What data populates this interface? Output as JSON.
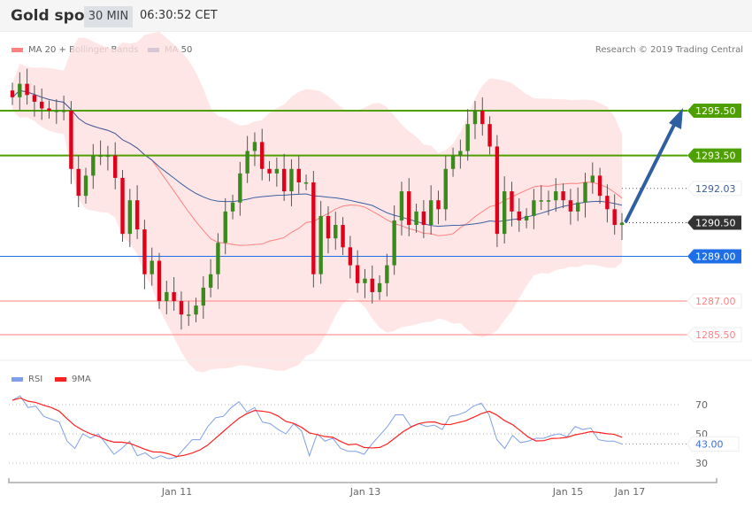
{
  "header": {
    "title": "Gold spot",
    "timeframe": "30 MIN",
    "time": "06:30:52 CET"
  },
  "legend": {
    "ma20": "MA 20 + Bollinger Bands",
    "ma50": "MA 50",
    "credit": "Research © 2019 Trading Central"
  },
  "rsi_legend": {
    "rsi": "RSI",
    "ma9": "9MA"
  },
  "colors": {
    "up": "#3a8a1e",
    "down": "#e0001a",
    "ma20": "#ff8080",
    "band": "#ffe0e0",
    "ma50": "#3a5fa0",
    "resistance": "#4ea000",
    "pivot": "#1e6ee8",
    "support": "#ff8080",
    "last": "#333333",
    "arrow": "#2f5fa0",
    "rsi": "#7f9fe8",
    "ma9": "#ff2020"
  },
  "chart_data": [
    {
      "type": "candlestick",
      "title": "Gold spot",
      "ylim": [
        1284.5,
        1297.5
      ],
      "closes": [
        1296.1,
        1296.7,
        1296.2,
        1295.9,
        1295.6,
        1295.5,
        1295.5,
        1295.5,
        1292.9,
        1291.7,
        1292.6,
        1293.5,
        1293.5,
        1293.5,
        1292.5,
        1290.0,
        1291.5,
        1290.2,
        1288.2,
        1288.8,
        1287.0,
        1287.4,
        1287.0,
        1286.4,
        1286.4,
        1286.8,
        1287.6,
        1288.2,
        1289.6,
        1291.0,
        1291.4,
        1292.7,
        1293.7,
        1294.1,
        1292.9,
        1292.7,
        1292.9,
        1291.9,
        1292.9,
        1292.3,
        1292.3,
        1288.2,
        1290.8,
        1289.8,
        1290.4,
        1289.4,
        1288.6,
        1287.8,
        1288.0,
        1287.4,
        1287.8,
        1288.6,
        1290.6,
        1291.9,
        1290.4,
        1291.0,
        1290.4,
        1291.5,
        1291.1,
        1292.9,
        1293.5,
        1293.7,
        1294.9,
        1295.5,
        1294.9,
        1293.9,
        1290.0,
        1291.9,
        1291.0,
        1290.6,
        1290.8,
        1291.5,
        1291.5,
        1291.5,
        1291.9,
        1291.5,
        1291.0,
        1291.4,
        1292.3,
        1292.6,
        1291.7,
        1291.1,
        1290.4,
        1290.5
      ],
      "levels": [
        {
          "value": "1295.50",
          "kind": "resistance"
        },
        {
          "value": "1293.50",
          "kind": "resistance"
        },
        {
          "value": "1292.03",
          "kind": "ma50"
        },
        {
          "value": "1290.50",
          "kind": "last"
        },
        {
          "value": "1289.00",
          "kind": "pivot"
        },
        {
          "value": "1287.00",
          "kind": "support"
        },
        {
          "value": "1285.50",
          "kind": "support"
        }
      ],
      "series": [
        {
          "name": "MA 20 + Bollinger Bands"
        },
        {
          "name": "MA 50"
        }
      ]
    },
    {
      "type": "line",
      "ylim": [
        20,
        80
      ],
      "yticks": [
        "70",
        "50",
        "30"
      ],
      "last_value": "43.00",
      "xticks": [
        "Jan 11",
        "Jan 13",
        "Jan 15",
        "Jan 17"
      ],
      "series": [
        {
          "name": "RSI",
          "values": [
            73,
            76,
            68,
            69,
            62,
            60,
            58,
            45,
            40,
            50,
            47,
            50,
            43,
            36,
            40,
            45,
            35,
            37,
            33,
            35,
            33,
            34,
            40,
            46,
            46,
            55,
            61,
            62,
            68,
            72,
            65,
            68,
            58,
            57,
            53,
            50,
            57,
            52,
            35,
            50,
            45,
            47,
            40,
            38,
            38,
            36,
            43,
            49,
            55,
            63,
            63,
            55,
            57,
            55,
            56,
            53,
            62,
            63,
            65,
            69,
            71,
            63,
            46,
            40,
            49,
            44,
            45,
            47,
            47,
            49,
            50,
            48,
            55,
            53,
            54,
            46,
            45,
            45,
            43
          ]
        },
        {
          "name": "9MA"
        }
      ]
    }
  ]
}
